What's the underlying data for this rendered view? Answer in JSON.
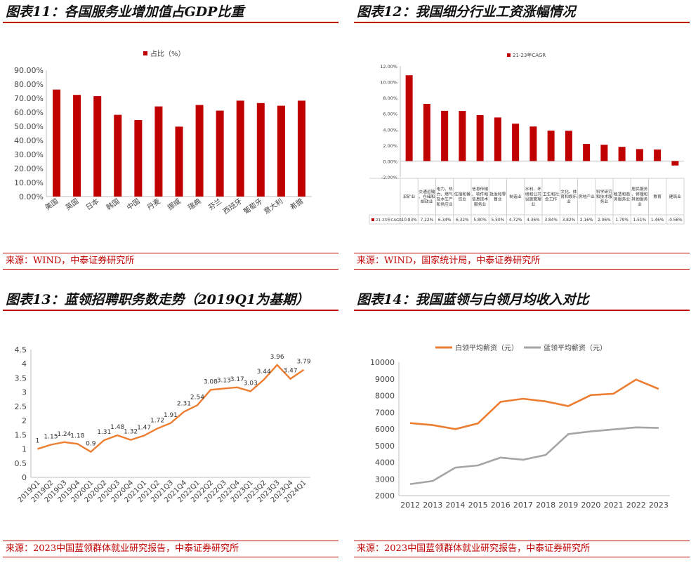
{
  "colors": {
    "accent_red": "#c00000",
    "orange": "#ed7d31",
    "gray": "#a5a5a5",
    "axis": "#bfbfbf"
  },
  "panels": [
    {
      "title": "图表11：各国服务业增加值占GDP比重",
      "source": "来源：WIND，中泰证券研究所"
    },
    {
      "title": "图表12：我国细分行业工资涨幅情况",
      "source": "来源：WIND，国家统计局，中泰证券研究所"
    },
    {
      "title": "图表13：蓝领招聘职务数走势（2019Q1为基期）",
      "source": "来源：2023中国蓝领群体就业研究报告，中泰证券研究所"
    },
    {
      "title": "图表14：我国蓝领与白领月均收入对比",
      "source": "来源：2023中国蓝领群体就业研究报告，中泰证券研究所"
    }
  ],
  "chart_data": [
    {
      "type": "bar",
      "title": "",
      "legend": [
        "占比（%）"
      ],
      "legend_position": "top-center",
      "categories": [
        "美国",
        "英国",
        "日本",
        "韩国",
        "中国",
        "丹麦",
        "挪威",
        "瑞典",
        "芬兰",
        "西班牙",
        "葡萄牙",
        "意大利",
        "希腊"
      ],
      "values": [
        76.2,
        72.4,
        71.5,
        58.2,
        54.5,
        64.2,
        49.8,
        65.2,
        61.2,
        68.3,
        66.6,
        64.7,
        68.3
      ],
      "y_ticks": [
        "0.00%",
        "10.00%",
        "20.00%",
        "30.00%",
        "40.00%",
        "50.00%",
        "60.00%",
        "70.00%",
        "80.00%",
        "90.00%"
      ],
      "ylim": [
        0,
        90
      ],
      "grid": false
    },
    {
      "type": "bar",
      "title": "",
      "legend": [
        "21-23年CAGR"
      ],
      "legend_position": "top-center",
      "row_label": "21-23年CAGR",
      "categories": [
        "采矿业",
        "交通运输、仓储和邮政业",
        "电力、热力、燃气及水生产和供应业",
        "住宿和餐饮业",
        "信息传输、软件和信息技术服务业",
        "批发和零售业",
        "制造业",
        "水利、环境和公共设施管理业",
        "卫生和社会工作",
        "文化、体育和娱乐业",
        "房地产业",
        "科学研究和技术服务业",
        "租赁和商务服务业",
        "居民服务、修理和其他服务业",
        "教育",
        "建筑业"
      ],
      "values": [
        10.83,
        7.22,
        6.34,
        6.32,
        5.8,
        5.5,
        4.72,
        4.36,
        3.84,
        3.82,
        2.16,
        2.06,
        1.79,
        1.51,
        1.46,
        -0.56
      ],
      "value_labels": [
        "10.83%",
        "7.22%",
        "6.34%",
        "6.32%",
        "5.80%",
        "5.50%",
        "4.72%",
        "4.36%",
        "3.84%",
        "3.82%",
        "2.16%",
        "2.06%",
        "1.79%",
        "1.51%",
        "1.46%",
        "-0.56%"
      ],
      "y_ticks": [
        "-2.00%",
        "0.00%",
        "2.00%",
        "4.00%",
        "6.00%",
        "8.00%",
        "10.00%",
        "12.00%"
      ],
      "ylim": [
        -2,
        12
      ],
      "grid": false
    },
    {
      "type": "line",
      "title": "",
      "categories": [
        "2019Q1",
        "2019Q2",
        "2019Q3",
        "2019Q4",
        "2020Q1",
        "2020Q2",
        "2020Q3",
        "2020Q4",
        "2021Q1",
        "2021Q2",
        "2021Q3",
        "2021Q4",
        "2022Q1",
        "2022Q2",
        "2022Q3",
        "2022Q4",
        "2023Q1",
        "2023Q2",
        "2023Q3",
        "2023Q4",
        "2024Q1"
      ],
      "values": [
        1,
        1.15,
        1.24,
        1.18,
        0.9,
        1.31,
        1.48,
        1.32,
        1.47,
        1.72,
        1.91,
        2.31,
        2.54,
        3.08,
        3.13,
        3.17,
        3.03,
        3.44,
        3.96,
        3.47,
        3.79
      ],
      "value_labels": [
        "1",
        "1.15",
        "1.24",
        "1.18",
        "0.9",
        "1.31",
        "1.48",
        "1.32",
        "1.47",
        "1.72",
        "1.91",
        "2.31",
        "2.54",
        "3.08",
        "3.13",
        "3.17",
        "3.03",
        "3.44",
        "3.96",
        "3.47",
        "3.79"
      ],
      "y_ticks": [
        "0",
        "0.5",
        "1",
        "1.5",
        "2",
        "2.5",
        "3",
        "3.5",
        "4",
        "4.5"
      ],
      "ylim": [
        0,
        4.5
      ],
      "grid": false
    },
    {
      "type": "line",
      "title": "",
      "legend_position": "top-center",
      "categories": [
        "2012",
        "2013",
        "2014",
        "2015",
        "2016",
        "2017",
        "2018",
        "2019",
        "2020",
        "2021",
        "2022",
        "2023"
      ],
      "series": [
        {
          "name": "白领平均薪资（元）",
          "values": [
            6350,
            6230,
            5990,
            6330,
            7620,
            7810,
            7650,
            7370,
            8030,
            8110,
            8960,
            8400
          ]
        },
        {
          "name": "蓝领平均薪资（元）",
          "values": [
            2690,
            2880,
            3680,
            3810,
            4280,
            4150,
            4440,
            5690,
            5850,
            5970,
            6090,
            6060
          ]
        }
      ],
      "y_ticks": [
        "2000",
        "3000",
        "4000",
        "5000",
        "6000",
        "7000",
        "8000",
        "9000",
        "10000"
      ],
      "ylim": [
        2000,
        10000
      ],
      "grid": false
    }
  ]
}
